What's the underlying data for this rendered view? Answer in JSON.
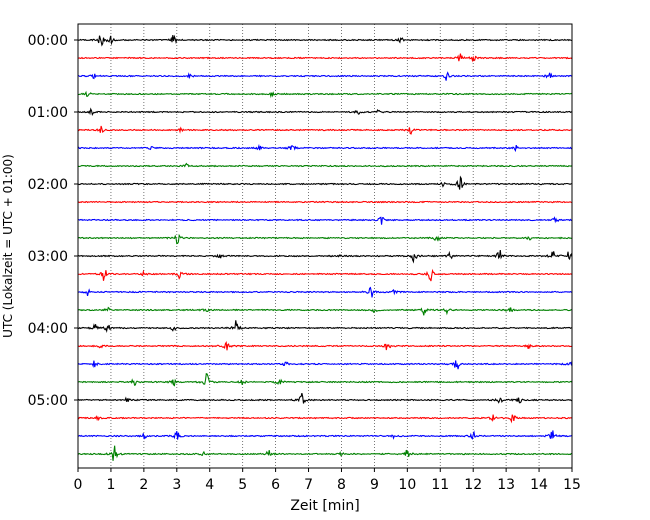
{
  "chart_data": {
    "type": "line",
    "title": "",
    "xlabel": "Zeit  [min]",
    "ylabel": "UTC (Lokalzeit = UTC + 01:00)",
    "xlim": [
      0,
      15
    ],
    "x_ticks": [
      "0",
      "1",
      "2",
      "3",
      "4",
      "5",
      "6",
      "7",
      "8",
      "9",
      "10",
      "11",
      "12",
      "13",
      "14",
      "15"
    ],
    "y_tick_labels": [
      "00:00",
      "01:00",
      "02:00",
      "03:00",
      "04:00",
      "05:00"
    ],
    "grid": "x-dotted",
    "trace_colors": [
      "#000000",
      "#ff0000",
      "#0000ff",
      "#008000"
    ],
    "traces": [
      {
        "start": "00:00",
        "color": "#000000",
        "events": [
          [
            0.7,
            14
          ],
          [
            1.0,
            8
          ],
          [
            2.9,
            8
          ],
          [
            9.8,
            4
          ]
        ]
      },
      {
        "start": "00:15",
        "color": "#ff0000",
        "events": [
          [
            11.6,
            8
          ],
          [
            12.0,
            6
          ]
        ]
      },
      {
        "start": "00:30",
        "color": "#0000ff",
        "events": [
          [
            3.4,
            4
          ],
          [
            11.2,
            8
          ],
          [
            14.3,
            8
          ],
          [
            0.5,
            4
          ]
        ]
      },
      {
        "start": "00:45",
        "color": "#008000",
        "events": [
          [
            0.3,
            4
          ],
          [
            5.9,
            4
          ]
        ]
      },
      {
        "start": "01:00",
        "color": "#000000",
        "events": [
          [
            0.4,
            5
          ],
          [
            9.1,
            3
          ],
          [
            8.5,
            3
          ]
        ]
      },
      {
        "start": "01:15",
        "color": "#ff0000",
        "events": [
          [
            0.7,
            6
          ],
          [
            10.1,
            7
          ],
          [
            3.1,
            3
          ]
        ]
      },
      {
        "start": "01:30",
        "color": "#0000ff",
        "events": [
          [
            6.5,
            8
          ],
          [
            5.5,
            4
          ],
          [
            13.3,
            4
          ],
          [
            2.2,
            3
          ]
        ]
      },
      {
        "start": "01:45",
        "color": "#008000",
        "events": [
          [
            3.3,
            4
          ]
        ]
      },
      {
        "start": "02:00",
        "color": "#000000",
        "events": [
          [
            11.6,
            13
          ],
          [
            11.1,
            4
          ]
        ]
      },
      {
        "start": "02:15",
        "color": "#ff0000",
        "events": []
      },
      {
        "start": "02:30",
        "color": "#0000ff",
        "events": [
          [
            9.2,
            8
          ],
          [
            14.5,
            5
          ]
        ]
      },
      {
        "start": "02:45",
        "color": "#008000",
        "events": [
          [
            3.0,
            12
          ],
          [
            10.9,
            8
          ],
          [
            13.7,
            5
          ]
        ]
      },
      {
        "start": "03:00",
        "color": "#000000",
        "events": [
          [
            10.2,
            10
          ],
          [
            12.8,
            12
          ],
          [
            14.4,
            12
          ],
          [
            4.3,
            4
          ],
          [
            7.9,
            4
          ],
          [
            11.3,
            5
          ],
          [
            14.9,
            8
          ]
        ]
      },
      {
        "start": "03:15",
        "color": "#ff0000",
        "events": [
          [
            0.8,
            12
          ],
          [
            10.7,
            12
          ],
          [
            3.1,
            8
          ],
          [
            2.0,
            4
          ]
        ]
      },
      {
        "start": "03:30",
        "color": "#0000ff",
        "events": [
          [
            8.9,
            12
          ],
          [
            0.3,
            6
          ],
          [
            9.6,
            4
          ]
        ]
      },
      {
        "start": "03:45",
        "color": "#008000",
        "events": [
          [
            10.5,
            8
          ],
          [
            9.0,
            6
          ],
          [
            13.1,
            6
          ],
          [
            11.2,
            5
          ],
          [
            3.9,
            4
          ],
          [
            0.9,
            4
          ]
        ]
      },
      {
        "start": "04:00",
        "color": "#000000",
        "events": [
          [
            4.8,
            14
          ],
          [
            0.5,
            10
          ],
          [
            0.9,
            6
          ],
          [
            2.9,
            4
          ]
        ]
      },
      {
        "start": "04:15",
        "color": "#ff0000",
        "events": [
          [
            4.5,
            9
          ],
          [
            9.4,
            8
          ],
          [
            13.7,
            5
          ],
          [
            0.7,
            4
          ]
        ]
      },
      {
        "start": "04:30",
        "color": "#0000ff",
        "events": [
          [
            11.5,
            12
          ],
          [
            15.0,
            12
          ],
          [
            6.3,
            5
          ],
          [
            0.5,
            5
          ]
        ]
      },
      {
        "start": "04:45",
        "color": "#008000",
        "events": [
          [
            3.9,
            14
          ],
          [
            6.1,
            8
          ],
          [
            1.7,
            6
          ],
          [
            2.9,
            8
          ],
          [
            5.0,
            5
          ]
        ]
      },
      {
        "start": "05:00",
        "color": "#000000",
        "events": [
          [
            6.8,
            14
          ],
          [
            1.5,
            6
          ],
          [
            12.8,
            6
          ],
          [
            13.4,
            5
          ]
        ]
      },
      {
        "start": "05:15",
        "color": "#ff0000",
        "events": [
          [
            13.2,
            9
          ],
          [
            12.6,
            5
          ],
          [
            0.6,
            4
          ]
        ]
      },
      {
        "start": "05:30",
        "color": "#0000ff",
        "events": [
          [
            3.0,
            8
          ],
          [
            12.0,
            6
          ],
          [
            14.4,
            11
          ],
          [
            2.0,
            5
          ],
          [
            9.6,
            4
          ]
        ]
      },
      {
        "start": "05:45",
        "color": "#008000",
        "events": [
          [
            1.1,
            14
          ],
          [
            10.0,
            10
          ],
          [
            5.8,
            8
          ],
          [
            3.8,
            6
          ],
          [
            8.0,
            4
          ]
        ]
      }
    ]
  }
}
